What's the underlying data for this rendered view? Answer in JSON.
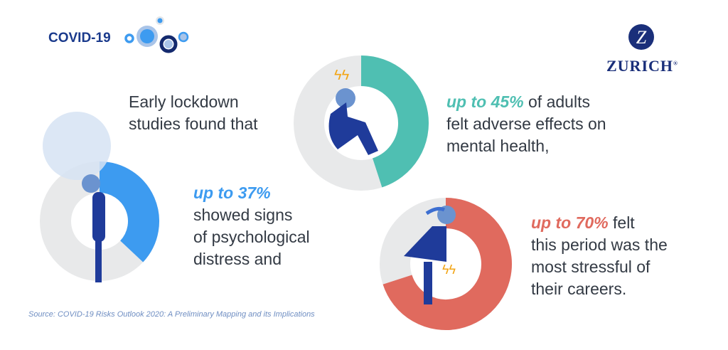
{
  "header": {
    "title": "COVID-19",
    "brand": "ZURICH",
    "brand_mark": "Z",
    "registered": "®"
  },
  "intro": {
    "lines": [
      "Early lockdown",
      "studies found that"
    ]
  },
  "stats": [
    {
      "highlight": "up to 37%",
      "rest_first": "",
      "lines": [
        "showed signs",
        "of psychological",
        "distress and"
      ],
      "color": "#3d9bf0"
    },
    {
      "highlight": "up to 45%",
      "rest_first": " of adults",
      "lines": [
        "felt adverse effects on",
        "mental health,"
      ],
      "color": "#4fbfb2"
    },
    {
      "highlight": "up to 70%",
      "rest_first": " felt",
      "lines": [
        "this period was the",
        "most stressful of",
        "their careers."
      ],
      "color": "#e06a5e"
    }
  ],
  "source": "Source: COVID-19 Risks Outlook 2020: A Preliminary Mapping and its Implications",
  "colors": {
    "ring_gray": "#e8e9ea",
    "figure_navy": "#1f3b9a",
    "head_blue": "#6b93cf",
    "brand_navy": "#1a2f7a"
  },
  "chart_data": {
    "type": "pie",
    "charts": [
      {
        "label": "psychological distress",
        "value": 37,
        "total": 100,
        "color": "#3d9bf0"
      },
      {
        "label": "adverse effects on mental health",
        "value": 45,
        "total": 100,
        "color": "#4fbfb2"
      },
      {
        "label": "most stressful period of careers",
        "value": 70,
        "total": 100,
        "color": "#e06a5e"
      }
    ]
  }
}
